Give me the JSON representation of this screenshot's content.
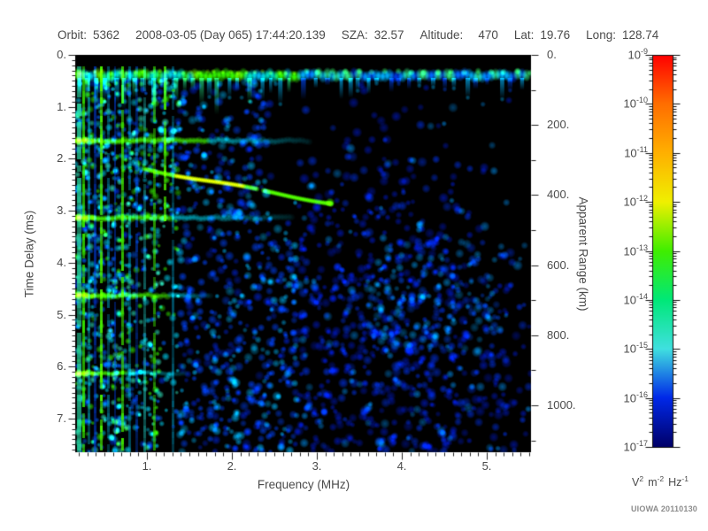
{
  "header": {
    "orbit_label": "Orbit:",
    "orbit_value": "5362",
    "datetime": "2008-03-05 (Day 065) 17:44:20.139",
    "sza_label": "SZA:",
    "sza_value": "32.57",
    "altitude_label": "Altitude:",
    "altitude_value": "470",
    "lat_label": "Lat:",
    "lat_value": "19.76",
    "long_label": "Long:",
    "long_value": "128.74"
  },
  "axes": {
    "left": {
      "title": "Time Delay (ms)",
      "ticks": [
        "0.",
        "1.",
        "2.",
        "3.",
        "4.",
        "5.",
        "6.",
        "7."
      ]
    },
    "bottom": {
      "title": "Frequency (MHz)",
      "ticks": [
        "1.",
        "2.",
        "3.",
        "4.",
        "5."
      ]
    },
    "right": {
      "title": "Apparent Range (km)",
      "ticks": [
        "0.",
        "200.",
        "400.",
        "600.",
        "800.",
        "1000."
      ]
    }
  },
  "colorbar": {
    "tick_labels": [
      {
        "base": "10",
        "exp": "-9"
      },
      {
        "base": "10",
        "exp": "-10"
      },
      {
        "base": "10",
        "exp": "-11"
      },
      {
        "base": "10",
        "exp": "-12"
      },
      {
        "base": "10",
        "exp": "-13"
      },
      {
        "base": "10",
        "exp": "-14"
      },
      {
        "base": "10",
        "exp": "-15"
      },
      {
        "base": "10",
        "exp": "-16"
      },
      {
        "base": "10",
        "exp": "-17"
      }
    ],
    "unit_parts": {
      "v": "V",
      "v_exp": "2",
      "m": "m",
      "m_exp": "-2",
      "hz": "Hz",
      "hz_exp": "-1"
    },
    "gradient": [
      "#ff0000",
      "#ff6e00",
      "#ffb000",
      "#f0f000",
      "#40ee00",
      "#00e878",
      "#40e0e0",
      "#0028e8",
      "#000068"
    ]
  },
  "attribution": "UIOWA 20110130",
  "chart_data": {
    "type": "heatmap",
    "xlabel": "Frequency (MHz)",
    "ylabel": "Time Delay (ms)",
    "y2label": "Apparent Range (km)",
    "x_range": [
      0.16,
      5.52
    ],
    "y_range": [
      0.0,
      7.65
    ],
    "y2_range": [
      0,
      1135
    ],
    "z_unit": "V^2 m^-2 Hz^-1",
    "z_scale": "log10",
    "z_range": [
      1e-17,
      1e-09
    ],
    "colormap_decades": [
      -9,
      -10,
      -11,
      -12,
      -13,
      -14,
      -15,
      -16,
      -17
    ],
    "annotations": {
      "orbit": 5362,
      "date": "2008-03-05",
      "day_of_year": 65,
      "time_ut": "17:44:20.139",
      "sza_deg": 32.57,
      "altitude_km": 470,
      "latitude_deg": 19.76,
      "longitude_deg": 128.74
    },
    "features": [
      {
        "name": "surface_reflection_band",
        "delay_ms": [
          0.25,
          0.65
        ],
        "freq_mhz": [
          0.16,
          5.52
        ],
        "intensity": "bright green-cyan at low frequency, blue-cyan lobes at high frequency"
      },
      {
        "name": "electron_cyclotron_echo_bands",
        "delays_ms": [
          1.65,
          3.15,
          4.65,
          6.15
        ],
        "period_ms": 1.5,
        "freq_extent_mhz": [
          0.16,
          2.9
        ]
      },
      {
        "name": "ionospheric_echo_trace",
        "points_freq_mhz_delay_ms": [
          [
            1.0,
            2.2
          ],
          [
            1.6,
            2.35
          ],
          [
            2.2,
            2.5
          ],
          [
            2.8,
            2.65
          ],
          [
            3.2,
            2.85
          ]
        ]
      },
      {
        "name": "local_plasma_resonance_spikes",
        "freq_mhz": [
          0.16,
          1.35
        ],
        "delay_ms": [
          0.25,
          7.65
        ],
        "appearance": "vertical green/cyan stripes"
      },
      {
        "name": "diffuse_backscatter",
        "freq_mhz": [
          1.4,
          5.5
        ],
        "delay_ms": [
          3.0,
          7.65
        ],
        "appearance": "scattered dark-blue speckle, density decreasing toward 5.5 MHz"
      }
    ]
  }
}
